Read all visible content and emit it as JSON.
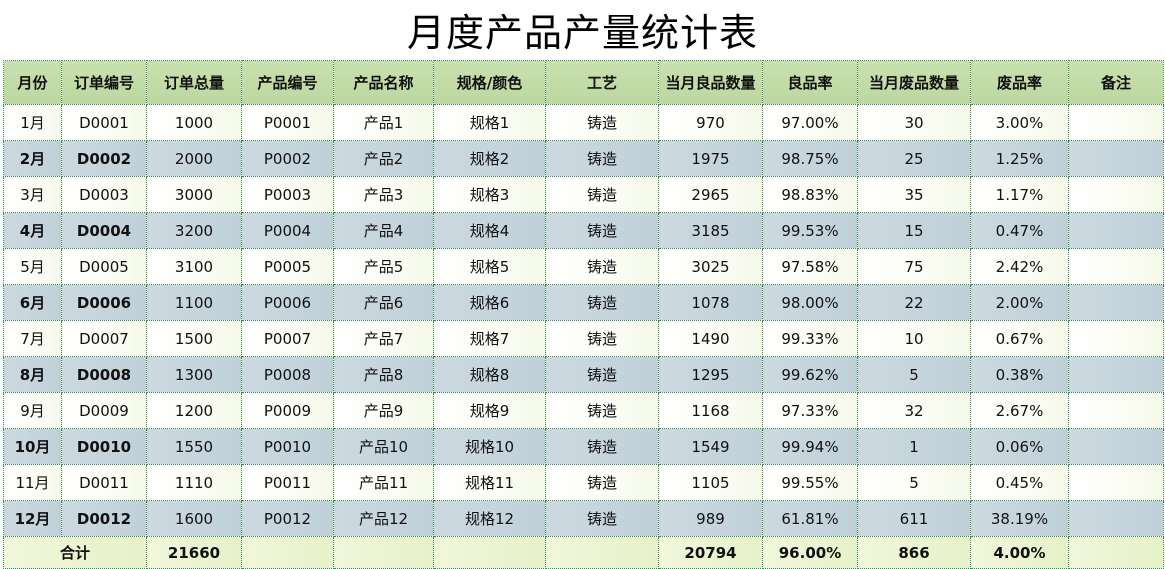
{
  "title": "月度产品产量统计表",
  "headers": [
    "月份",
    "订单编号",
    "订单总量",
    "产品编号",
    "产品名称",
    "规格/颜色",
    "工艺",
    "当月良品数量",
    "良品率",
    "当月废品数量",
    "废品率",
    "备注"
  ],
  "rows": [
    [
      "1月",
      "D0001",
      "1000",
      "P0001",
      "产品1",
      "规格1",
      "铸造",
      "970",
      "97.00%",
      "30",
      "3.00%",
      ""
    ],
    [
      "2月",
      "D0002",
      "2000",
      "P0002",
      "产品2",
      "规格2",
      "铸造",
      "1975",
      "98.75%",
      "25",
      "1.25%",
      ""
    ],
    [
      "3月",
      "D0003",
      "3000",
      "P0003",
      "产品3",
      "规格3",
      "铸造",
      "2965",
      "98.83%",
      "35",
      "1.17%",
      ""
    ],
    [
      "4月",
      "D0004",
      "3200",
      "P0004",
      "产品4",
      "规格4",
      "铸造",
      "3185",
      "99.53%",
      "15",
      "0.47%",
      ""
    ],
    [
      "5月",
      "D0005",
      "3100",
      "P0005",
      "产品5",
      "规格5",
      "铸造",
      "3025",
      "97.58%",
      "75",
      "2.42%",
      ""
    ],
    [
      "6月",
      "D0006",
      "1100",
      "P0006",
      "产品6",
      "规格6",
      "铸造",
      "1078",
      "98.00%",
      "22",
      "2.00%",
      ""
    ],
    [
      "7月",
      "D0007",
      "1500",
      "P0007",
      "产品7",
      "规格7",
      "铸造",
      "1490",
      "99.33%",
      "10",
      "0.67%",
      ""
    ],
    [
      "8月",
      "D0008",
      "1300",
      "P0008",
      "产品8",
      "规格8",
      "铸造",
      "1295",
      "99.62%",
      "5",
      "0.38%",
      ""
    ],
    [
      "9月",
      "D0009",
      "1200",
      "P0009",
      "产品9",
      "规格9",
      "铸造",
      "1168",
      "97.33%",
      "32",
      "2.67%",
      ""
    ],
    [
      "10月",
      "D0010",
      "1550",
      "P0010",
      "产品10",
      "规格10",
      "铸造",
      "1549",
      "99.94%",
      "1",
      "0.06%",
      ""
    ],
    [
      "11月",
      "D0011",
      "1110",
      "P0011",
      "产品11",
      "规格11",
      "铸造",
      "1105",
      "99.55%",
      "5",
      "0.45%",
      ""
    ],
    [
      "12月",
      "D0012",
      "1600",
      "P0012",
      "产品12",
      "规格12",
      "铸造",
      "989",
      "61.81%",
      "611",
      "38.19%",
      ""
    ]
  ],
  "totals": {
    "label": "合计",
    "order_total": "21660",
    "good_total": "20794",
    "good_rate": "96.00%",
    "waste_total": "866",
    "waste_rate": "4.00%"
  },
  "colors": {
    "header_bg": "#c8e0ae",
    "stripe_bg": "#c6d5dd",
    "border": "#2f8f4a",
    "total_bg": "#eaf3d0"
  }
}
